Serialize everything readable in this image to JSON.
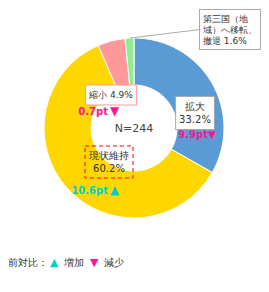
{
  "chart_data": {
    "type": "pie",
    "categories": [
      "拡大\n33.2%",
      "現状維持\n60.2%",
      "縮小 4.9%",
      "第三国（地\n域）へ移転、\n撤退 1.6%"
    ],
    "values": [
      33.2,
      60.2,
      4.9,
      1.6
    ],
    "colors": [
      "#5B9BD5",
      "#FFD700",
      "#FF9999",
      "#90EE90"
    ],
    "annotations": [
      {
        "text": "N=244"
      },
      {
        "text": "9.9pt▼",
        "color": "#FF1493"
      },
      {
        "text": "10.6pt",
        "color": "#00CED1"
      },
      {
        "text": "▲",
        "color": "#00CED1"
      },
      {
        "text": "0.7pt",
        "color": "#FF1493"
      },
      {
        "text": "▼",
        "color": "#FF1493"
      },
      {
        "text": "前対比："
      },
      {
        "text": "▲",
        "color": "#00CED1"
      },
      {
        "text": "増加"
      },
      {
        "text": "▼",
        "color": "#FF1493"
      },
      {
        "text": "減少"
      }
    ]
  }
}
